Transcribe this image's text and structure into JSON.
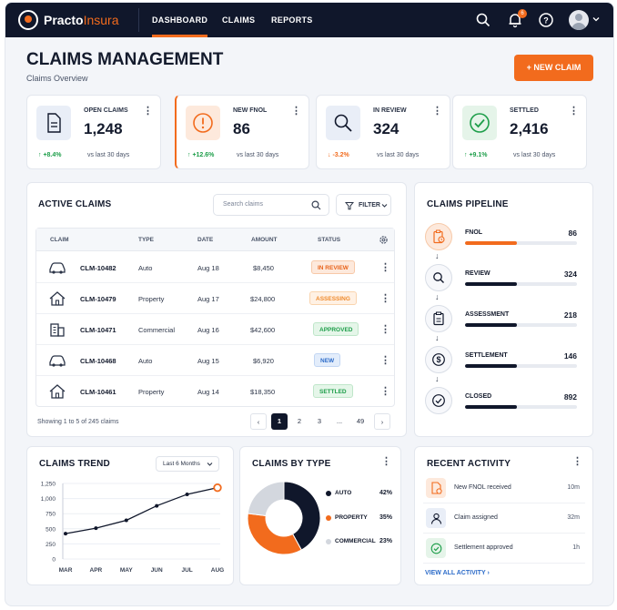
{
  "app": {
    "logo_main": "Practo",
    "logo_accent": "Insura"
  },
  "nav": {
    "tabs": [
      {
        "label": "DASHBOARD"
      },
      {
        "label": "CLAIMS"
      },
      {
        "label": "REPORTS"
      }
    ],
    "notification_count": "6"
  },
  "header": {
    "title": "CLAIMS MANAGEMENT",
    "subtitle": "Claims Overview",
    "new_claim_label": "+ NEW CLAIM"
  },
  "stats": [
    {
      "label": "OPEN CLAIMS",
      "value": "1,248",
      "trend": "+8.4%",
      "direction": "up",
      "vs": "vs last 30 days",
      "icon": "document-icon"
    },
    {
      "label": "NEW FNOL",
      "value": "86",
      "trend": "+12.6%",
      "direction": "up",
      "vs": "vs last 30 days",
      "icon": "alert-circle-icon"
    },
    {
      "label": "IN REVIEW",
      "value": "324",
      "trend": "-3.2%",
      "direction": "down",
      "vs": "vs last 30 days",
      "icon": "magnifier-icon"
    },
    {
      "label": "SETTLED",
      "value": "2,416",
      "trend": "+9.1%",
      "direction": "up",
      "vs": "vs last 30 days",
      "icon": "check-circle-icon"
    }
  ],
  "active_claims": {
    "title": "ACTIVE CLAIMS",
    "search_placeholder": "Search claims",
    "filter_label": "FILTER",
    "columns": [
      "CLAIM",
      "TYPE",
      "DATE",
      "AMOUNT",
      "STATUS"
    ],
    "rows": [
      {
        "id": "CLM-10482",
        "type": "Auto",
        "date": "Aug 18",
        "amount": "$8,450",
        "status": "IN REVIEW",
        "icon": "car-icon"
      },
      {
        "id": "CLM-10479",
        "type": "Property",
        "date": "Aug 17",
        "amount": "$24,800",
        "status": "ASSESSING",
        "icon": "house-icon"
      },
      {
        "id": "CLM-10471",
        "type": "Commercial",
        "date": "Aug 16",
        "amount": "$42,600",
        "status": "APPROVED",
        "icon": "building-icon"
      },
      {
        "id": "CLM-10468",
        "type": "Auto",
        "date": "Aug 15",
        "amount": "$6,920",
        "status": "NEW",
        "icon": "car-icon"
      },
      {
        "id": "CLM-10461",
        "type": "Property",
        "date": "Aug 14",
        "amount": "$18,350",
        "status": "SETTLED",
        "icon": "house-icon"
      }
    ],
    "showing": "Showing 1 to 5 of 245 claims",
    "pages": [
      "1",
      "2",
      "3",
      "...",
      "49"
    ]
  },
  "pipeline": {
    "title": "CLAIMS PIPELINE",
    "stages": [
      {
        "name": "FNOL",
        "value": "86",
        "fill": 0.46,
        "color": "#f26b1d"
      },
      {
        "name": "REVIEW",
        "value": "324",
        "fill": 0.46,
        "color": "#10172b"
      },
      {
        "name": "ASSESSMENT",
        "value": "218",
        "fill": 0.46,
        "color": "#10172b"
      },
      {
        "name": "SETTLEMENT",
        "value": "146",
        "fill": 0.46,
        "color": "#10172b"
      },
      {
        "name": "CLOSED",
        "value": "892",
        "fill": 0.46,
        "color": "#10172b"
      }
    ]
  },
  "trend": {
    "title": "CLAIMS TREND",
    "range": "Last 6 Months"
  },
  "by_type": {
    "title": "CLAIMS BY TYPE"
  },
  "activity": {
    "title": "RECENT ACTIVITY",
    "items": [
      {
        "text": "New FNOL received",
        "time": "10m",
        "icon": "document-alert-icon"
      },
      {
        "text": "Claim assigned",
        "time": "32m",
        "icon": "user-icon"
      },
      {
        "text": "Settlement approved",
        "time": "1h",
        "icon": "check-circle-icon"
      }
    ],
    "view_all": "VIEW ALL ACTIVITY"
  },
  "colors": {
    "accent": "#f26b1d",
    "navy": "#10172b",
    "green": "#1e9e4a",
    "grey": "#d3d7de"
  },
  "chart_data": [
    {
      "type": "line",
      "title": "CLAIMS TREND",
      "x": [
        "MAR",
        "APR",
        "MAY",
        "JUN",
        "JUL",
        "AUG"
      ],
      "series": [
        {
          "values": [
            420,
            510,
            640,
            880,
            1070,
            1180
          ]
        }
      ],
      "yticks": [
        "0",
        "250",
        "500",
        "750",
        "1,000",
        "1,250"
      ],
      "ylim": [
        0,
        1250
      ],
      "grid": true
    },
    {
      "type": "pie",
      "title": "CLAIMS BY TYPE",
      "categories": [
        "AUTO",
        "PROPERTY",
        "COMMERCIAL"
      ],
      "values": [
        42,
        35,
        23
      ],
      "labels": [
        "42%",
        "35%",
        "23%"
      ],
      "colors": [
        "#10172b",
        "#f26b1d",
        "#d3d7de"
      ]
    }
  ]
}
